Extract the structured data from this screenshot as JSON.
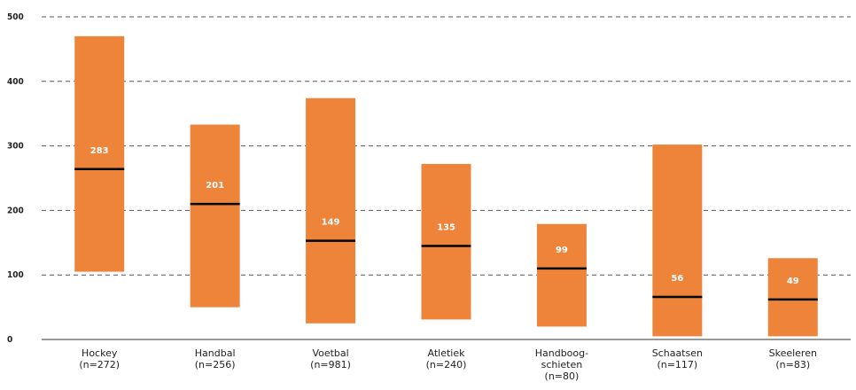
{
  "chart_data": {
    "type": "bar",
    "subtype": "floating-range-with-median",
    "categories": [
      [
        "Hockey",
        "(n=272)"
      ],
      [
        "Handbal",
        "(n=256)"
      ],
      [
        "Voetbal",
        "(n=981)"
      ],
      [
        "Atletiek",
        "(n=240)"
      ],
      [
        "Handboog-",
        "schieten",
        "(n=80)"
      ],
      [
        "Schaatsen",
        "(n=117)"
      ],
      [
        "Skeeleren",
        "(n=83)"
      ]
    ],
    "series": [
      {
        "key": "range_low",
        "values": [
          105,
          50,
          25,
          31,
          20,
          5,
          5
        ]
      },
      {
        "key": "range_high",
        "values": [
          470,
          333,
          374,
          272,
          179,
          302,
          126
        ]
      },
      {
        "key": "median",
        "values": [
          264,
          210,
          153,
          145,
          110,
          66,
          62
        ]
      },
      {
        "key": "label",
        "values": [
          283,
          201,
          149,
          135,
          99,
          56,
          49
        ]
      }
    ],
    "ylim": [
      0,
      500
    ],
    "yticks": [
      "0",
      "100",
      "200",
      "300",
      "400",
      "500"
    ],
    "grid": true,
    "title": "",
    "xlabel": "",
    "ylabel": "",
    "colors": {
      "bar": "#EE833A",
      "median": "#000000",
      "grid": "#555555",
      "value_text": "#FFFFFF"
    }
  }
}
